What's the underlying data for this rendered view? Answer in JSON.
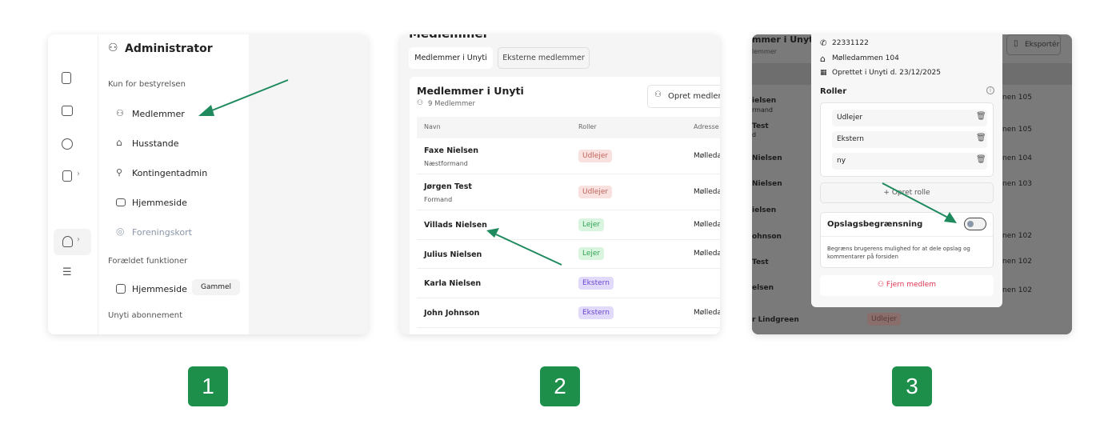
{
  "panel1": {
    "title": "Administrator",
    "section_board": "Kun for bestyrelsen",
    "items": [
      {
        "label": "Medlemmer",
        "icon": "users-icon"
      },
      {
        "label": "Husstande",
        "icon": "home-icon"
      },
      {
        "label": "Kontingentadmin",
        "icon": "user-check-icon"
      },
      {
        "label": "Hjemmeside",
        "icon": "monitor-icon"
      },
      {
        "label": "Foreningskort",
        "icon": "map-pin-icon",
        "muted": true
      }
    ],
    "section_legacy": "Forældet funktioner",
    "legacy_item": {
      "label": "Hjemmeside",
      "tag": "Gammel"
    },
    "section_subscription": "Unyti abonnement"
  },
  "panel2": {
    "page_title": "Medlemmer",
    "tabs": [
      "Medlemmer i Unyti",
      "Eksterne medlemmer"
    ],
    "card_title": "Medlemmer i Unyti",
    "member_count": "9 Medlemmer",
    "create_button": "Opret medlem",
    "columns": [
      "Navn",
      "Roller",
      "Adresse"
    ],
    "rows": [
      {
        "name": "Faxe Nielsen",
        "title": "Næstformand",
        "role": "Udlejer",
        "address": "Mølleda"
      },
      {
        "name": "Jørgen Test",
        "title": "Formand",
        "role": "Udlejer",
        "address": "Mølleda"
      },
      {
        "name": "Villads Nielsen",
        "title": "",
        "role": "Lejer",
        "address": "Mølleda"
      },
      {
        "name": "Julius Nielsen",
        "title": "",
        "role": "Lejer",
        "address": "Mølleda"
      },
      {
        "name": "Karla Nielsen",
        "title": "",
        "role": "Ekstern",
        "address": ""
      },
      {
        "name": "John Johnson",
        "title": "",
        "role": "Ekstern",
        "address": "Mølleda"
      }
    ]
  },
  "panel3": {
    "bg_title": "mmer i Unyti",
    "bg_subtitle": "lemmer",
    "export_button": "Eksportér",
    "bg_names": [
      "ielsen",
      "rmand",
      "Test",
      "d",
      "Nielsen",
      "Nielsen",
      "ielsen",
      "ohnson",
      "Test",
      "elsen",
      "r Lindgreen"
    ],
    "bg_addresses": [
      "nen 105",
      "nen 105",
      "nen 104",
      "nen 103",
      "nen 102",
      "nen 102",
      "nen 102"
    ],
    "bg_role": "Udlejer",
    "phone": "22331122",
    "address": "Mølledammen 104",
    "created": "Oprettet i Unyti d. 23/12/2025",
    "roles_title": "Roller",
    "roles": [
      "Udlejer",
      "Ekstern",
      "ny"
    ],
    "create_role": "Opret rolle",
    "restriction_title": "Opslagsbegrænsning",
    "restriction_enabled": false,
    "restriction_desc": "Begræns brugerens mulighed for at dele opslag og kommentarer på forsiden",
    "remove_member": "Fjern medlem"
  },
  "steps": [
    "1",
    "2",
    "3"
  ],
  "colors": {
    "accent": "#1e8f4b",
    "arrow": "#1f8a5e",
    "danger": "#e0344f"
  }
}
